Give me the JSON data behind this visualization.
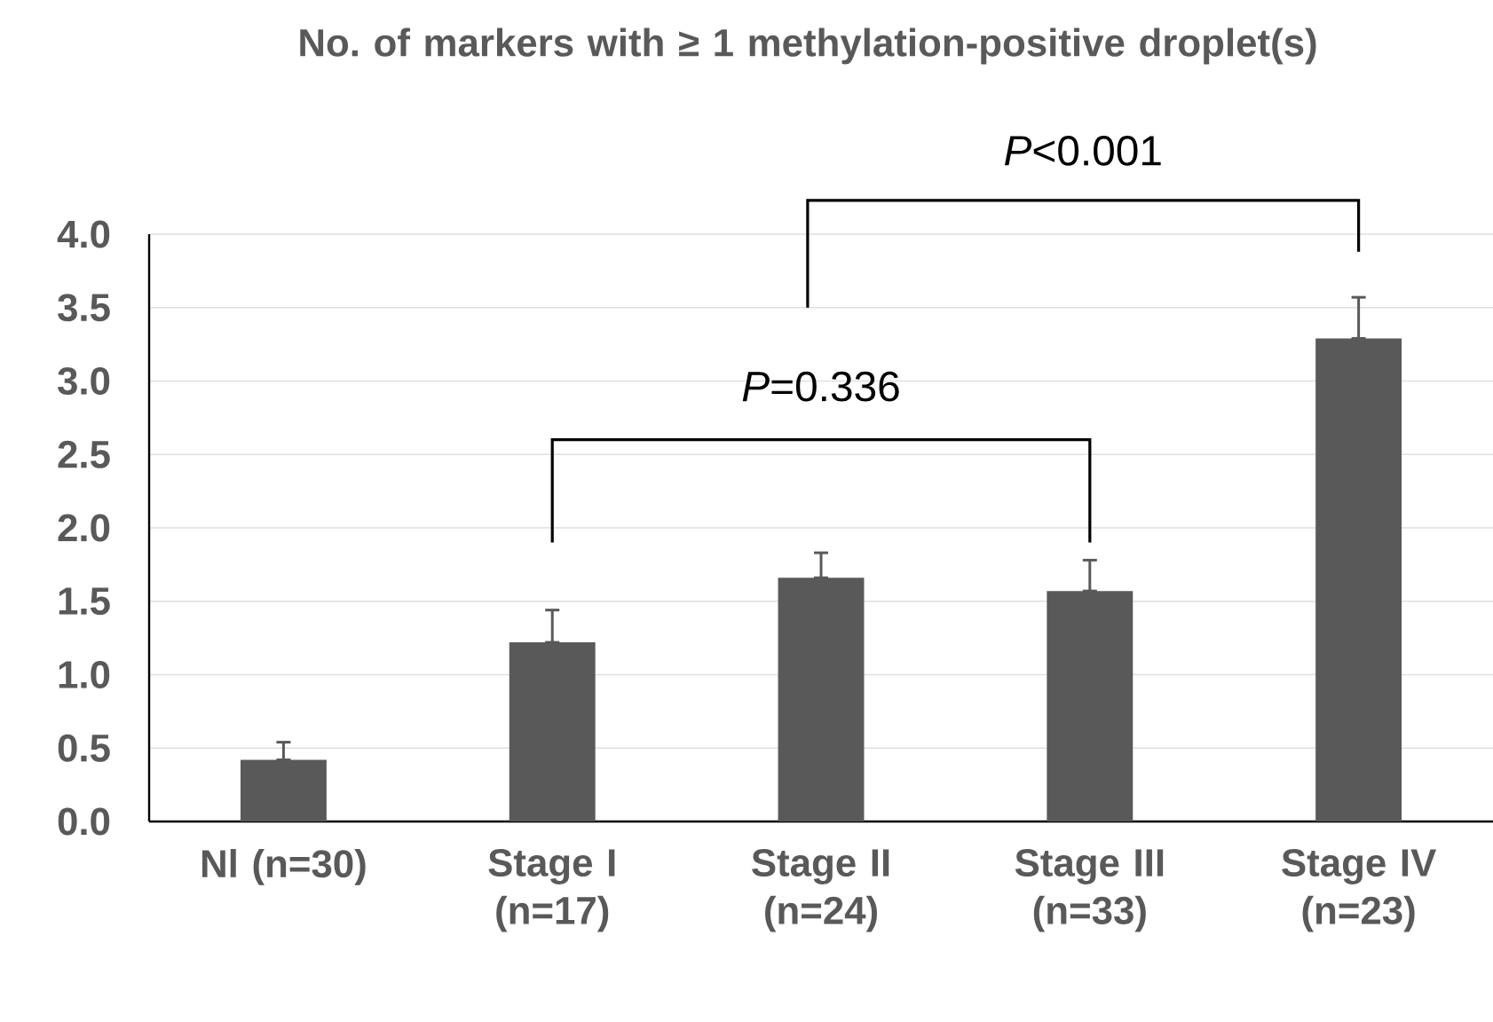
{
  "chart_data": {
    "type": "bar",
    "title": "No. of markers with ≥ 1 methylation-positive droplet(s)",
    "categories": [
      "Nl (n=30)",
      "Stage I (n=17)",
      "Stage II (n=24)",
      "Stage III (n=33)",
      "Stage IV (n=23)"
    ],
    "values": [
      0.42,
      1.22,
      1.66,
      1.57,
      3.29
    ],
    "errors": [
      [
        0.42,
        0.54
      ],
      [
        1.22,
        1.44
      ],
      [
        1.66,
        1.83
      ],
      [
        1.57,
        1.78
      ],
      [
        3.29,
        3.57
      ]
    ],
    "color": "#595959",
    "ylim": [
      0,
      4
    ],
    "yticks": [
      {
        "value": 0,
        "label": "0.0"
      },
      {
        "value": 0.5,
        "label": "0.5"
      },
      {
        "value": 1,
        "label": "1.0"
      },
      {
        "value": 1.5,
        "label": "1.5"
      },
      {
        "value": 2,
        "label": "2.0"
      },
      {
        "value": 2.5,
        "label": "2.5"
      },
      {
        "value": 3,
        "label": "3.0"
      },
      {
        "value": 3.5,
        "label": "3.5"
      },
      {
        "value": 4,
        "label": "4.0"
      }
    ],
    "grid": "y",
    "annotations": [
      "*P*<0.001",
      "*P*=0.336"
    ]
  }
}
